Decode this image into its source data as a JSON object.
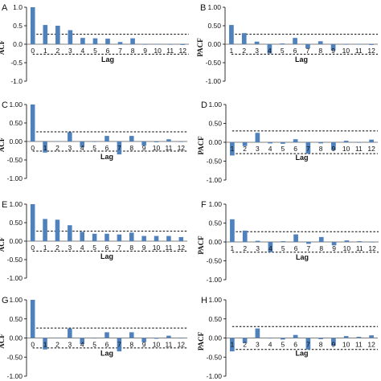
{
  "chart_data": [
    {
      "type": "bar",
      "panel": "A",
      "title": "",
      "xlabel": "Lag",
      "ylabel": "ACF",
      "ylim": [
        -1.0,
        1.0
      ],
      "yticks": [
        "-1.0",
        "-0.5",
        "0.0",
        "0.5",
        "1.0"
      ],
      "categories": [
        "0",
        "1",
        "2",
        "3",
        "4",
        "5",
        "6",
        "7",
        "8",
        "9",
        "10",
        "11",
        "12"
      ],
      "values": [
        1.0,
        0.52,
        0.5,
        0.38,
        0.17,
        0.16,
        0.15,
        0.06,
        0.16,
        -0.01,
        0.01,
        0.0,
        -0.02
      ],
      "confidence_bound": 0.27,
      "grid": false,
      "legend": "none",
      "bar_color": "#4f81bd"
    },
    {
      "type": "bar",
      "panel": "B",
      "title": "",
      "xlabel": "Lag",
      "ylabel": "PACF",
      "ylim": [
        -1.0,
        1.0
      ],
      "yticks": [
        "-1.00",
        "-0.50",
        "0.00",
        "0.50",
        "1.00"
      ],
      "categories": [
        "1",
        "2",
        "3",
        "4",
        "5",
        "6",
        "7",
        "8",
        "9",
        "10",
        "11",
        "12"
      ],
      "values": [
        0.52,
        0.3,
        0.07,
        -0.25,
        0.02,
        0.17,
        -0.11,
        0.08,
        -0.17,
        -0.01,
        0.01,
        -0.02
      ],
      "confidence_bound": 0.27,
      "grid": false,
      "legend": "none",
      "bar_color": "#4f81bd"
    },
    {
      "type": "bar",
      "panel": "C",
      "title": "",
      "xlabel": "Lag",
      "ylabel": "ACF",
      "ylim": [
        -1.0,
        1.0
      ],
      "yticks": [
        "-1.00",
        "-0.50",
        "0.00",
        "0.50",
        "1.00"
      ],
      "categories": [
        "0",
        "1",
        "2",
        "3",
        "4",
        "5",
        "6",
        "7",
        "8",
        "9",
        "10",
        "11",
        "12"
      ],
      "values": [
        1.0,
        -0.3,
        0.01,
        0.25,
        -0.16,
        0.0,
        0.15,
        -0.35,
        0.15,
        -0.11,
        -0.02,
        0.06,
        0.0
      ],
      "confidence_bound": 0.26,
      "grid": false,
      "legend": "none",
      "bar_color": "#4f81bd"
    },
    {
      "type": "bar",
      "panel": "D",
      "title": "",
      "xlabel": "Lag",
      "ylabel": "PACF",
      "ylim": [
        -1.0,
        1.0
      ],
      "yticks": [
        "-1.00",
        "-0.50",
        "0.00",
        "0.50",
        "1.00"
      ],
      "categories": [
        "1",
        "2",
        "3",
        "4",
        "5",
        "6",
        "7",
        "8",
        "9",
        "10",
        "11",
        "12"
      ],
      "values": [
        -0.35,
        -0.1,
        0.25,
        -0.03,
        -0.04,
        0.08,
        -0.3,
        -0.03,
        -0.21,
        0.04,
        -0.01,
        0.07
      ],
      "confidence_bound": 0.3,
      "grid": false,
      "legend": "none",
      "bar_color": "#4f81bd"
    },
    {
      "type": "bar",
      "panel": "E",
      "title": "",
      "xlabel": "Lag",
      "ylabel": "ACF",
      "ylim": [
        -1.0,
        1.0
      ],
      "yticks": [
        "-1.00",
        "-0.50",
        "0.00",
        "0.50",
        "1.00"
      ],
      "categories": [
        "0",
        "1",
        "2",
        "3",
        "4",
        "5",
        "6",
        "7",
        "8",
        "9",
        "10",
        "11",
        "12"
      ],
      "values": [
        1.0,
        0.6,
        0.58,
        0.43,
        0.25,
        0.2,
        0.2,
        0.18,
        0.23,
        0.14,
        0.14,
        0.14,
        0.11
      ],
      "confidence_bound": 0.27,
      "grid": false,
      "legend": "none",
      "bar_color": "#4f81bd"
    },
    {
      "type": "bar",
      "panel": "F",
      "title": "",
      "xlabel": "Lag",
      "ylabel": "PACF",
      "ylim": [
        -1.0,
        1.0
      ],
      "yticks": [
        "-1.00",
        "-0.50",
        "0.00",
        "0.50",
        "1.00"
      ],
      "categories": [
        "1",
        "2",
        "3",
        "4",
        "5",
        "6",
        "7",
        "8",
        "9",
        "10",
        "11",
        "12"
      ],
      "values": [
        0.6,
        0.3,
        0.03,
        -0.27,
        0.02,
        0.2,
        -0.05,
        0.13,
        -0.09,
        0.04,
        0.02,
        0.0
      ],
      "confidence_bound": 0.27,
      "grid": false,
      "legend": "none",
      "bar_color": "#4f81bd"
    },
    {
      "type": "bar",
      "panel": "G",
      "title": "",
      "xlabel": "Lag",
      "ylabel": "ACF",
      "ylim": [
        -1.0,
        1.0
      ],
      "yticks": [
        "-1.00",
        "-0.50",
        "0.00",
        "0.50",
        "1.00"
      ],
      "categories": [
        "0",
        "1",
        "2",
        "3",
        "4",
        "5",
        "6",
        "7",
        "8",
        "9",
        "10",
        "11",
        "12"
      ],
      "values": [
        1.0,
        -0.3,
        0.01,
        0.25,
        -0.16,
        0.0,
        0.15,
        -0.35,
        0.15,
        -0.11,
        -0.02,
        0.06,
        0.0
      ],
      "confidence_bound": 0.26,
      "grid": false,
      "legend": "none",
      "bar_color": "#4f81bd"
    },
    {
      "type": "bar",
      "panel": "H",
      "title": "",
      "xlabel": "Lag",
      "ylabel": "PACF",
      "ylim": [
        -1.0,
        1.0
      ],
      "yticks": [
        "-1.00",
        "-0.50",
        "0.00",
        "0.50",
        "1.00"
      ],
      "categories": [
        "1",
        "2",
        "3",
        "4",
        "5",
        "6",
        "7",
        "8",
        "9",
        "10",
        "11",
        "12"
      ],
      "values": [
        -0.35,
        -0.13,
        0.25,
        -0.01,
        -0.04,
        0.08,
        -0.3,
        -0.03,
        -0.2,
        0.05,
        0.03,
        0.07
      ],
      "confidence_bound": 0.3,
      "grid": false,
      "legend": "none",
      "bar_color": "#4f81bd"
    }
  ]
}
